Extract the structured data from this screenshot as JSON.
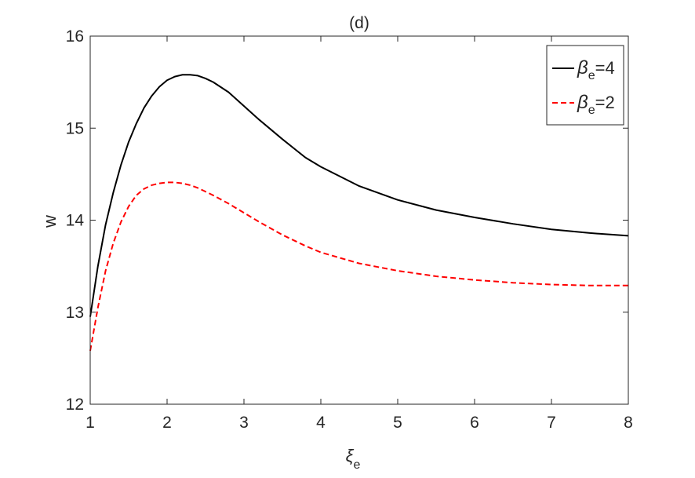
{
  "chart_data": {
    "type": "line",
    "title": "(d)",
    "xlabel": "ξ",
    "xlabel_sub": "e",
    "ylabel": "w",
    "xlim": [
      1,
      8
    ],
    "ylim": [
      12,
      16
    ],
    "xticks": [
      1,
      2,
      3,
      4,
      5,
      6,
      7,
      8
    ],
    "yticks": [
      12,
      13,
      14,
      15,
      16
    ],
    "grid": false,
    "legend_position": "top-right",
    "series": [
      {
        "name": "β",
        "name_sub": "e",
        "name_suffix": "=4",
        "color": "#000000",
        "dash": "solid",
        "x": [
          1.0,
          1.1,
          1.2,
          1.3,
          1.4,
          1.5,
          1.6,
          1.7,
          1.8,
          1.9,
          2.0,
          2.1,
          2.2,
          2.3,
          2.4,
          2.5,
          2.6,
          2.8,
          3.0,
          3.2,
          3.5,
          3.8,
          4.0,
          4.5,
          5.0,
          5.5,
          6.0,
          6.5,
          7.0,
          7.5,
          8.0
        ],
        "y": [
          12.95,
          13.5,
          13.95,
          14.3,
          14.6,
          14.85,
          15.05,
          15.22,
          15.35,
          15.45,
          15.52,
          15.56,
          15.58,
          15.58,
          15.57,
          15.54,
          15.5,
          15.39,
          15.24,
          15.09,
          14.88,
          14.68,
          14.58,
          14.37,
          14.22,
          14.11,
          14.03,
          13.96,
          13.9,
          13.86,
          13.83
        ]
      },
      {
        "name": "β",
        "name_sub": "e",
        "name_suffix": "=2",
        "color": "#ff0000",
        "dash": "dashed",
        "x": [
          1.0,
          1.1,
          1.2,
          1.3,
          1.4,
          1.5,
          1.6,
          1.7,
          1.8,
          1.9,
          2.0,
          2.1,
          2.2,
          2.3,
          2.4,
          2.5,
          2.6,
          2.8,
          3.0,
          3.2,
          3.5,
          3.8,
          4.0,
          4.5,
          5.0,
          5.5,
          6.0,
          6.5,
          7.0,
          7.5,
          8.0
        ],
        "y": [
          12.58,
          13.05,
          13.45,
          13.75,
          13.98,
          14.15,
          14.27,
          14.34,
          14.38,
          14.4,
          14.41,
          14.41,
          14.4,
          14.38,
          14.35,
          14.31,
          14.27,
          14.18,
          14.08,
          13.98,
          13.84,
          13.72,
          13.65,
          13.53,
          13.45,
          13.39,
          13.35,
          13.32,
          13.3,
          13.29,
          13.29
        ]
      }
    ]
  }
}
